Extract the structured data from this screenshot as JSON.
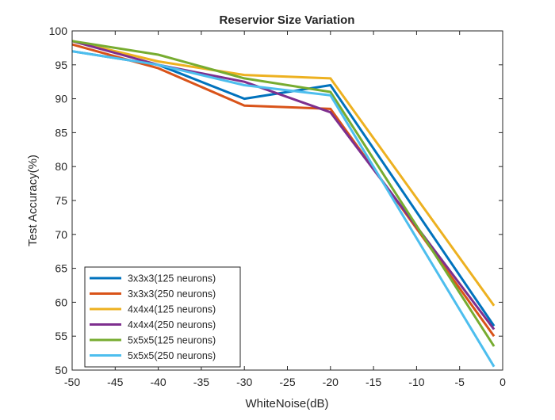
{
  "chart_data": {
    "type": "line",
    "title": "Reservior Size Variation",
    "xlabel": "WhiteNoise(dB)",
    "ylabel": "Test Accuracy(%)",
    "xlim": [
      -50,
      0
    ],
    "ylim": [
      50,
      100
    ],
    "xticks": [
      -50,
      -45,
      -40,
      -35,
      -30,
      -25,
      -20,
      -15,
      -10,
      -5,
      0
    ],
    "yticks": [
      50,
      55,
      60,
      65,
      70,
      75,
      80,
      85,
      90,
      95,
      100
    ],
    "grid": false,
    "legend_position": "bottom-left",
    "x": [
      -50,
      -40,
      -30,
      -20,
      -1
    ],
    "series": [
      {
        "name": "3x3x3(125 neurons)",
        "color": "#0072bd",
        "values": [
          97,
          95,
          90,
          92,
          56.5
        ]
      },
      {
        "name": "3x3x3(250 neurons)",
        "color": "#d95319",
        "values": [
          98,
          94.5,
          89,
          88.5,
          55
        ]
      },
      {
        "name": "4x4x4(125 neurons)",
        "color": "#edb120",
        "values": [
          98.5,
          95.5,
          93.5,
          93,
          59.5
        ]
      },
      {
        "name": "4x4x4(250 neurons)",
        "color": "#7e2f8e",
        "values": [
          98.5,
          95,
          92.5,
          88,
          56
        ]
      },
      {
        "name": "5x5x5(125 neurons)",
        "color": "#77ac30",
        "values": [
          98.5,
          96.5,
          93,
          91,
          53.5
        ]
      },
      {
        "name": "5x5x5(250 neurons)",
        "color": "#4dbeee",
        "values": [
          97,
          95,
          92,
          90.5,
          50.5
        ]
      }
    ]
  }
}
